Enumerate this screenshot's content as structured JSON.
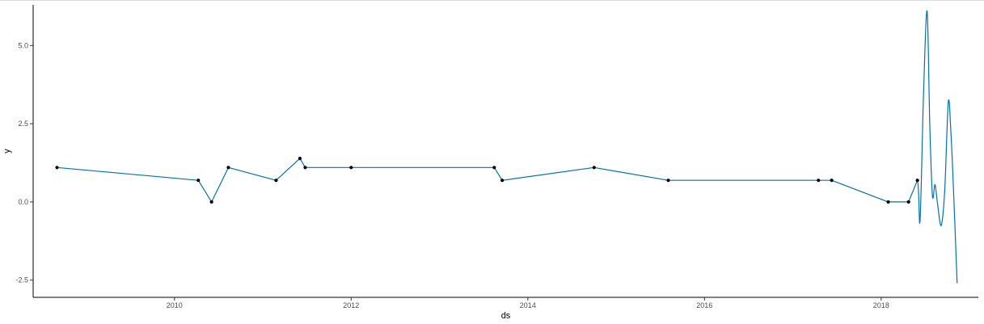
{
  "chart_data": {
    "type": "line",
    "title": "",
    "xlabel": "ds",
    "ylabel": "y",
    "xlim": [
      2008.4,
      2019.1
    ],
    "ylim": [
      -3.05,
      6.3
    ],
    "x_ticks": [
      2010,
      2012,
      2014,
      2016,
      2018
    ],
    "x_tick_labels": [
      "2010",
      "2012",
      "2014",
      "2016",
      "2018"
    ],
    "y_ticks": [
      -2.5,
      0.0,
      2.5,
      5.0
    ],
    "y_tick_labels": [
      "-2.5",
      "0.0",
      "2.5",
      "5.0"
    ],
    "grid": false,
    "line_color": "#0072B2",
    "point_color": "#000000",
    "series": [
      {
        "x": [
          2008.67,
          2010.27,
          2010.42,
          2010.61,
          2011.15,
          2011.42,
          2011.48,
          2012.0,
          2013.62,
          2013.71,
          2014.75,
          2015.59,
          2017.29,
          2017.44,
          2018.08,
          2018.31,
          2018.41,
          2018.44,
          2018.48,
          2018.52,
          2018.55,
          2018.58,
          2018.61,
          2018.64,
          2018.68,
          2018.72,
          2018.76,
          2018.79,
          2018.82,
          2018.86
        ],
        "y": [
          1.1,
          0.69,
          0.0,
          1.1,
          0.69,
          1.39,
          1.1,
          1.1,
          1.1,
          0.69,
          1.1,
          0.69,
          0.69,
          0.69,
          0.0,
          0.0,
          0.69,
          -0.6,
          3.5,
          6.1,
          2.5,
          0.2,
          0.55,
          -0.1,
          -0.75,
          0.4,
          3.2,
          2.2,
          0.3,
          -2.6
        ]
      }
    ],
    "points": {
      "x": [
        2008.67,
        2010.27,
        2010.42,
        2010.61,
        2011.15,
        2011.42,
        2011.48,
        2012.0,
        2013.62,
        2013.71,
        2014.75,
        2015.59,
        2017.29,
        2017.44,
        2018.08,
        2018.31,
        2018.41
      ],
      "y": [
        1.1,
        0.69,
        0.0,
        1.1,
        0.69,
        1.39,
        1.1,
        1.1,
        1.1,
        0.69,
        1.1,
        0.69,
        0.69,
        0.69,
        0.0,
        0.0,
        0.69
      ]
    }
  }
}
